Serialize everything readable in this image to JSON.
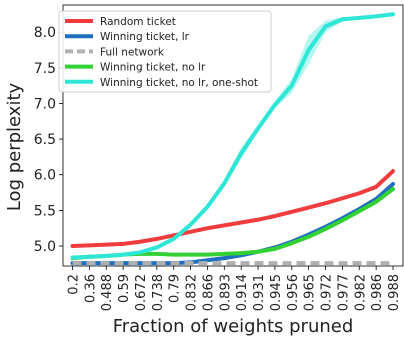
{
  "chart_data": {
    "type": "line",
    "title": "",
    "xlabel": "Fraction of weights pruned",
    "ylabel": "Log perplexity",
    "categories": [
      "0.2",
      "0.36",
      "0.488",
      "0.59",
      "0.672",
      "0.738",
      "0.79",
      "0.832",
      "0.866",
      "0.893",
      "0.914",
      "0.931",
      "0.945",
      "0.956",
      "0.965",
      "0.972",
      "0.977",
      "0.982",
      "0.986",
      "0.988"
    ],
    "yticks": [
      5.0,
      5.5,
      6.0,
      6.5,
      7.0,
      7.5,
      8.0
    ],
    "ytick_labels": [
      "5.0",
      "5.5",
      "6.0",
      "6.5",
      "7.0",
      "7.5",
      "8.0"
    ],
    "ylim": [
      4.72,
      8.38
    ],
    "grid": false,
    "legend_position": "upper-left",
    "series": [
      {
        "name": "Random ticket",
        "color": "#f03c3c",
        "style": "solid",
        "values": [
          5.0,
          5.01,
          5.02,
          5.03,
          5.06,
          5.1,
          5.15,
          5.2,
          5.25,
          5.29,
          5.33,
          5.37,
          5.42,
          5.48,
          5.54,
          5.6,
          5.67,
          5.74,
          5.83,
          6.05
        ],
        "band": [
          0.01,
          0.01,
          0.01,
          0.01,
          0.01,
          0.01,
          0.01,
          0.01,
          0.01,
          0.01,
          0.01,
          0.01,
          0.01,
          0.02,
          0.02,
          0.02,
          0.02,
          0.02,
          0.03,
          0.04
        ]
      },
      {
        "name": "Winning ticket, lr",
        "color": "#1f6fc0",
        "style": "solid",
        "values": [
          4.76,
          4.76,
          4.76,
          4.76,
          4.76,
          4.76,
          4.76,
          4.77,
          4.8,
          4.83,
          4.87,
          4.92,
          4.98,
          5.06,
          5.16,
          5.27,
          5.39,
          5.52,
          5.66,
          5.87
        ],
        "band": [
          0,
          0,
          0,
          0,
          0,
          0,
          0,
          0,
          0,
          0,
          0,
          0,
          0,
          0,
          0,
          0,
          0,
          0,
          0.01,
          0.02
        ]
      },
      {
        "name": "Full network",
        "color": "#b0b0b0",
        "style": "dashed",
        "values": [
          4.76,
          4.76,
          4.76,
          4.76,
          4.76,
          4.76,
          4.76,
          4.76,
          4.76,
          4.76,
          4.76,
          4.76,
          4.76,
          4.76,
          4.76,
          4.76,
          4.76,
          4.76,
          4.76,
          4.76
        ],
        "band": [
          0,
          0,
          0,
          0,
          0,
          0,
          0,
          0,
          0,
          0,
          0,
          0,
          0,
          0,
          0,
          0,
          0,
          0,
          0,
          0
        ]
      },
      {
        "name": "Winning ticket, no lr",
        "color": "#33d133",
        "style": "solid",
        "values": [
          4.83,
          4.85,
          4.86,
          4.88,
          4.89,
          4.89,
          4.88,
          4.88,
          4.88,
          4.89,
          4.9,
          4.92,
          4.96,
          5.04,
          5.13,
          5.24,
          5.36,
          5.49,
          5.62,
          5.8
        ],
        "band": [
          0,
          0,
          0,
          0,
          0,
          0,
          0,
          0,
          0,
          0,
          0,
          0,
          0,
          0,
          0,
          0,
          0,
          0,
          0.01,
          0.02
        ]
      },
      {
        "name": "Winning ticket, no lr, one-shot",
        "color": "#2ee6d6",
        "style": "solid",
        "values": [
          4.84,
          4.85,
          4.86,
          4.88,
          4.91,
          4.98,
          5.1,
          5.3,
          5.55,
          5.88,
          6.3,
          6.65,
          6.98,
          7.25,
          7.75,
          8.08,
          8.18,
          8.2,
          8.22,
          8.25
        ],
        "band": [
          0,
          0,
          0,
          0,
          0,
          0,
          0,
          0,
          0.04,
          0.05,
          0.08,
          0.05,
          0.05,
          0.1,
          0.2,
          0.08,
          0.03,
          0.02,
          0.02,
          0.02
        ]
      }
    ]
  }
}
